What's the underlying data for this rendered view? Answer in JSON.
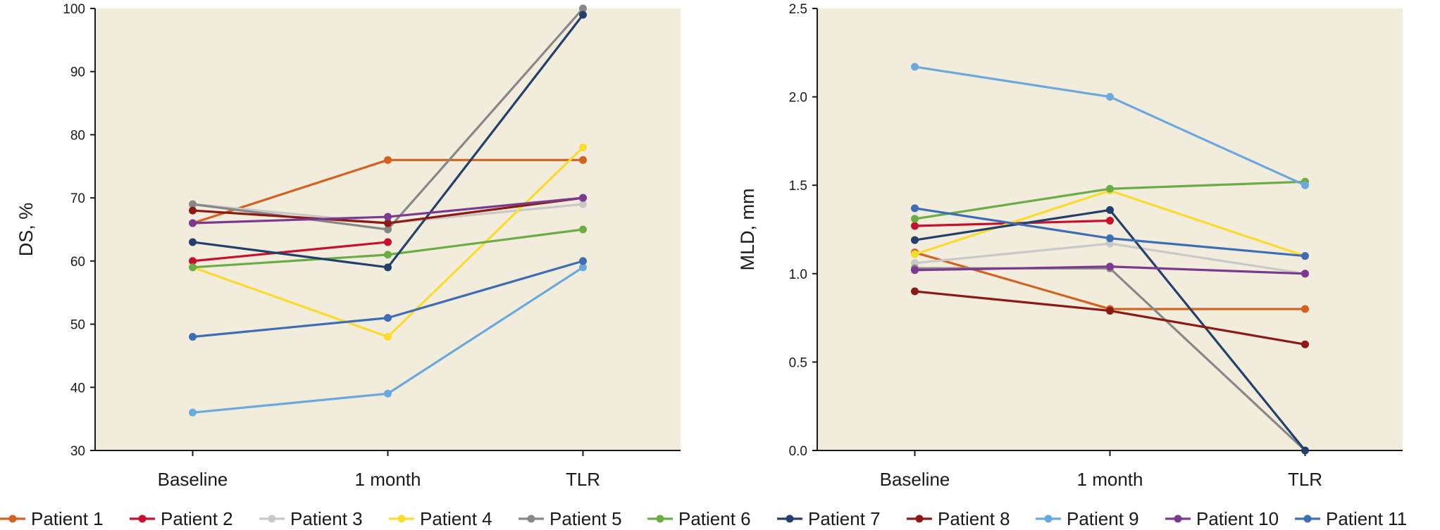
{
  "legend": [
    {
      "name": "Patient 1",
      "color": "#d4611f"
    },
    {
      "name": "Patient 2",
      "color": "#c8102e"
    },
    {
      "name": "Patient 3",
      "color": "#c8c8c8"
    },
    {
      "name": "Patient 4",
      "color": "#f9dc2d"
    },
    {
      "name": "Patient 5",
      "color": "#878787"
    },
    {
      "name": "Patient 6",
      "color": "#6aad45"
    },
    {
      "name": "Patient 7",
      "color": "#233f6b"
    },
    {
      "name": "Patient 8",
      "color": "#8b1a14"
    },
    {
      "name": "Patient 9",
      "color": "#6aa9dd"
    },
    {
      "name": "Patient 10",
      "color": "#7b3a8f"
    },
    {
      "name": "Patient 11",
      "color": "#3d6db5"
    }
  ],
  "chart_data": [
    {
      "type": "line",
      "categories": [
        "Baseline",
        "1 month",
        "TLR"
      ],
      "ylabel": "DS, %",
      "ylim": [
        30,
        100
      ],
      "yticks": [
        "30",
        "40",
        "50",
        "60",
        "70",
        "80",
        "90",
        "100"
      ],
      "plot_background": "#f1ecdb",
      "grid": false,
      "series": [
        {
          "name": "Patient 1",
          "values": [
            66,
            76,
            76
          ]
        },
        {
          "name": "Patient 2",
          "values": [
            60,
            63,
            null
          ]
        },
        {
          "name": "Patient 3",
          "values": [
            69,
            66,
            69
          ]
        },
        {
          "name": "Patient 4",
          "values": [
            59,
            48,
            78
          ]
        },
        {
          "name": "Patient 5",
          "values": [
            69,
            65,
            100
          ]
        },
        {
          "name": "Patient 6",
          "values": [
            59,
            61,
            65
          ]
        },
        {
          "name": "Patient 7",
          "values": [
            63,
            59,
            99
          ]
        },
        {
          "name": "Patient 8",
          "values": [
            68,
            66,
            70
          ]
        },
        {
          "name": "Patient 9",
          "values": [
            36,
            39,
            59
          ]
        },
        {
          "name": "Patient 10",
          "values": [
            66,
            67,
            70
          ]
        },
        {
          "name": "Patient 11",
          "values": [
            48,
            51,
            60
          ]
        }
      ]
    },
    {
      "type": "line",
      "categories": [
        "Baseline",
        "1 month",
        "TLR"
      ],
      "ylabel": "MLD, mm",
      "ylim": [
        0,
        2.5
      ],
      "yticks": [
        "0.0",
        "0.5",
        "1.0",
        "1.5",
        "2.0",
        "2.5"
      ],
      "plot_background": "#f1ecdb",
      "grid": false,
      "series": [
        {
          "name": "Patient 1",
          "values": [
            1.12,
            0.8,
            0.8
          ]
        },
        {
          "name": "Patient 2",
          "values": [
            1.27,
            1.3,
            null
          ]
        },
        {
          "name": "Patient 3",
          "values": [
            1.06,
            1.17,
            1.0
          ]
        },
        {
          "name": "Patient 4",
          "values": [
            1.11,
            1.47,
            1.1
          ]
        },
        {
          "name": "Patient 5",
          "values": [
            1.03,
            1.03,
            0.0
          ]
        },
        {
          "name": "Patient 6",
          "values": [
            1.31,
            1.48,
            1.52
          ]
        },
        {
          "name": "Patient 7",
          "values": [
            1.19,
            1.36,
            0.0
          ]
        },
        {
          "name": "Patient 8",
          "values": [
            0.9,
            0.79,
            0.6
          ]
        },
        {
          "name": "Patient 9",
          "values": [
            2.17,
            2.0,
            1.5
          ]
        },
        {
          "name": "Patient 10",
          "values": [
            1.02,
            1.04,
            1.0
          ]
        },
        {
          "name": "Patient 11",
          "values": [
            1.37,
            1.2,
            1.1
          ]
        }
      ]
    }
  ]
}
